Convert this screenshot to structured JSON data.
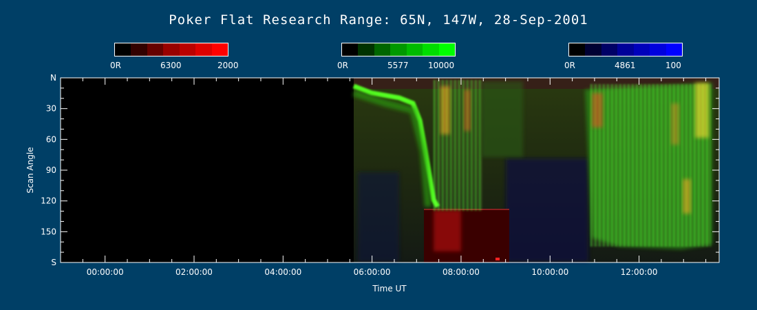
{
  "chart_data": {
    "type": "heatmap",
    "title": "Poker Flat Research Range: 65N, 147W, 28-Sep-2001",
    "xlabel": "Time UT",
    "ylabel": "Scan Angle",
    "x_ticks": [
      "00:00:00",
      "02:00:00",
      "04:00:00",
      "06:00:00",
      "08:00:00",
      "10:00:00",
      "12:00:00"
    ],
    "y_ticks": [
      "N",
      "30",
      "60",
      "90",
      "120",
      "150",
      "S"
    ],
    "xlim_hours": [
      -1.0,
      13.8
    ],
    "ylim_deg": [
      0,
      180
    ],
    "colorbars": [
      {
        "name": "6300",
        "min_label": "0R",
        "max_label": "2000",
        "color": "#ff0000"
      },
      {
        "name": "5577",
        "min_label": "0R",
        "max_label": "10000",
        "color": "#00ff00"
      },
      {
        "name": "4861",
        "min_label": "0R",
        "max_label": "100",
        "color": "#0000ff"
      }
    ]
  }
}
